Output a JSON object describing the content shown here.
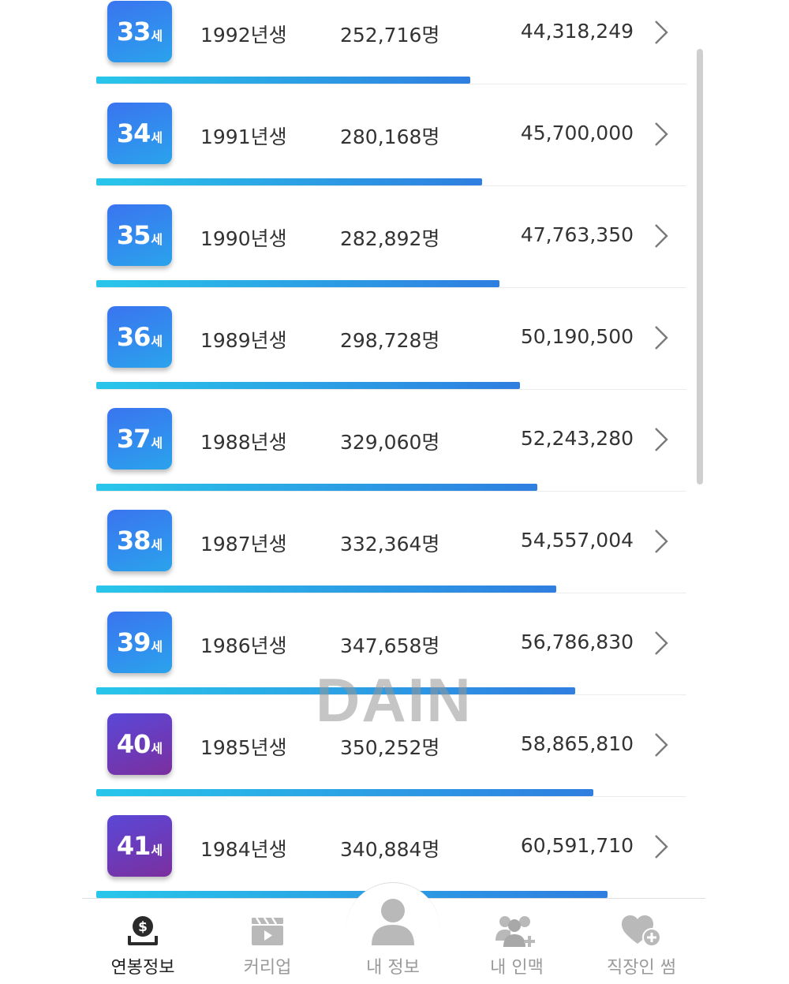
{
  "rows": [
    {
      "age": "33",
      "unit": "세",
      "birth_year": "1992년생",
      "count": "252,716명",
      "salary": "44,318,249",
      "bar_value": 44318249,
      "badge_color": "blue"
    },
    {
      "age": "34",
      "unit": "세",
      "birth_year": "1991년생",
      "count": "280,168명",
      "salary": "45,700,000",
      "bar_value": 45700000,
      "badge_color": "blue"
    },
    {
      "age": "35",
      "unit": "세",
      "birth_year": "1990년생",
      "count": "282,892명",
      "salary": "47,763,350",
      "bar_value": 47763350,
      "badge_color": "blue"
    },
    {
      "age": "36",
      "unit": "세",
      "birth_year": "1989년생",
      "count": "298,728명",
      "salary": "50,190,500",
      "bar_value": 50190500,
      "badge_color": "blue"
    },
    {
      "age": "37",
      "unit": "세",
      "birth_year": "1988년생",
      "count": "329,060명",
      "salary": "52,243,280",
      "bar_value": 52243280,
      "badge_color": "blue"
    },
    {
      "age": "38",
      "unit": "세",
      "birth_year": "1987년생",
      "count": "332,364명",
      "salary": "54,557,004",
      "bar_value": 54557004,
      "badge_color": "blue"
    },
    {
      "age": "39",
      "unit": "세",
      "birth_year": "1986년생",
      "count": "347,658명",
      "salary": "56,786,830",
      "bar_value": 56786830,
      "badge_color": "blue"
    },
    {
      "age": "40",
      "unit": "세",
      "birth_year": "1985년생",
      "count": "350,252명",
      "salary": "58,865,810",
      "bar_value": 58865810,
      "badge_color": "purple"
    },
    {
      "age": "41",
      "unit": "세",
      "birth_year": "1984년생",
      "count": "340,884명",
      "salary": "60,591,710",
      "bar_value": 60591710,
      "badge_color": "purple"
    }
  ],
  "watermark": "DAIN",
  "bottom_nav": [
    {
      "label": "연봉정보",
      "icon": "salary-money-icon",
      "active": true
    },
    {
      "label": "커리업",
      "icon": "video-clapper-icon",
      "active": false
    },
    {
      "label": "내 정보",
      "icon": "person-icon",
      "active": false
    },
    {
      "label": "내 인맥",
      "icon": "people-add-icon",
      "active": false
    },
    {
      "label": "직장인 썸",
      "icon": "heart-plus-icon",
      "active": false
    }
  ],
  "colors": {
    "bar_start": "#28c6ea",
    "bar_end": "#2f7ee0",
    "badge_blue_start": "#3a74f0",
    "badge_blue_end": "#2aa3ec",
    "badge_purple_start": "#5a48d8",
    "badge_purple_end": "#7b2f9e"
  }
}
